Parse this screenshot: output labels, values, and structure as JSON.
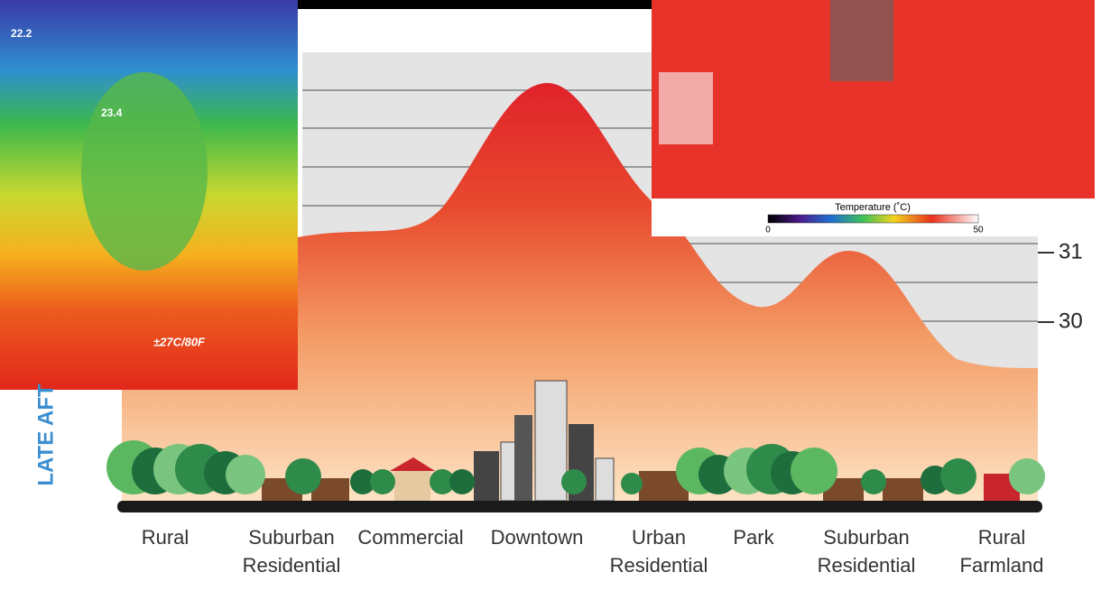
{
  "thermal_photo": {
    "labels": [
      "22.2",
      "23.4",
      "±27C/80F"
    ]
  },
  "simulation": {
    "colorbar": {
      "title": "Temperature (˚C)",
      "min": "0",
      "max": "50"
    }
  },
  "profile": {
    "axis_label": "LATE AFT",
    "yticks": [
      "31",
      "30"
    ],
    "zones": [
      [
        "Rural"
      ],
      [
        "Suburban",
        "Residential"
      ],
      [
        "Commercial"
      ],
      [
        "Downtown"
      ],
      [
        "Urban",
        "Residential"
      ],
      [
        "Park"
      ],
      [
        "Suburban",
        "Residential"
      ],
      [
        "Rural",
        "Farmland"
      ]
    ]
  }
}
